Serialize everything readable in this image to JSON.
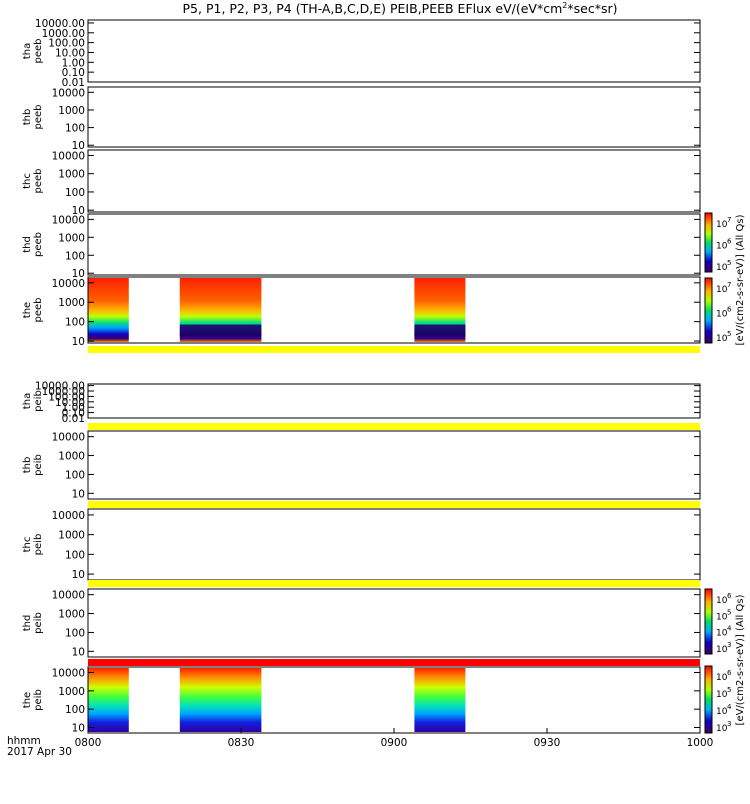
{
  "title_parts": [
    "P5, P1, P2, P3, P4 (TH-A,B,C,D,E) PEIB,PEEB EFlux eV/(eV*cm",
    "2",
    "*sec*sr)"
  ],
  "footer": {
    "time_label": "hhmm",
    "date_label": "2017 Apr 30"
  },
  "colorbar_labels": {
    "top": "[eV/(cm2-s-sr-eV)] (All Qs)",
    "bottom": "[eV/(cm2-s-sr-eV)] (All Qs)"
  },
  "chart_data": {
    "type": "heatmap",
    "x_ticks": [
      "0800",
      "0830",
      "0900",
      "0930",
      "1000"
    ],
    "x_range_minutes": [
      480,
      600
    ],
    "panels": [
      {
        "label1": "tha",
        "label2": "peeb",
        "yticks": [
          "10000.00",
          "1000.00",
          "100.00",
          "10.00",
          "1.00",
          "0.10",
          "0.01"
        ],
        "ylog": [
          -2,
          4.3
        ],
        "data_intervals": [],
        "yellow_bar": false
      },
      {
        "label1": "thb",
        "label2": "peeb",
        "yticks": [
          "10000",
          "1000",
          "100",
          "10"
        ],
        "ylog": [
          0.9,
          4.3
        ],
        "data_intervals": [],
        "yellow_bar": false
      },
      {
        "label1": "thc",
        "label2": "peeb",
        "yticks": [
          "10000",
          "1000",
          "100",
          "10"
        ],
        "ylog": [
          0.9,
          4.3
        ],
        "data_intervals": [],
        "yellow_bar": false
      },
      {
        "label1": "thd",
        "label2": "peeb",
        "yticks": [
          "10000",
          "1000",
          "100",
          "10"
        ],
        "ylog": [
          0.9,
          4.3
        ],
        "data_intervals": [],
        "yellow_bar": false
      },
      {
        "label1": "the",
        "label2": "peeb",
        "yticks": [
          "10000",
          "1000",
          "100",
          "10"
        ],
        "ylog": [
          0.9,
          4.3
        ],
        "data_intervals": [
          [
            480,
            488
          ],
          [
            498,
            514
          ],
          [
            544,
            554
          ]
        ],
        "yellow_bar": true
      },
      {
        "label1": "tha",
        "label2": "peib",
        "yticks": [
          "10000.00",
          "1000.00",
          "100.00",
          "10.00",
          "1.00",
          "0.10",
          "0.01"
        ],
        "ylog": [
          -2,
          4.3
        ],
        "data_intervals": [],
        "yellow_bar": true
      },
      {
        "label1": "thb",
        "label2": "peib",
        "yticks": [
          "10000",
          "1000",
          "100",
          "10"
        ],
        "ylog": [
          0.7,
          4.3
        ],
        "data_intervals": [],
        "yellow_bar": true
      },
      {
        "label1": "thc",
        "label2": "peib",
        "yticks": [
          "10000",
          "1000",
          "100",
          "10"
        ],
        "ylog": [
          0.7,
          4.3
        ],
        "data_intervals": [],
        "yellow_bar": true
      },
      {
        "label1": "thd",
        "label2": "peib",
        "yticks": [
          "10000",
          "1000",
          "100",
          "10"
        ],
        "ylog": [
          0.7,
          4.3
        ],
        "data_intervals": [],
        "red_bar": true
      },
      {
        "label1": "the",
        "label2": "peib",
        "yticks": [
          "10000",
          "1000",
          "100",
          "10"
        ],
        "ylog": [
          0.7,
          4.3
        ],
        "data_intervals": [
          [
            480,
            488
          ],
          [
            498,
            514
          ],
          [
            544,
            554
          ]
        ]
      }
    ],
    "colorbars": [
      {
        "for": "thd peeb",
        "ticks": [
          "10",
          "7",
          "10",
          "6",
          "10",
          "5"
        ]
      },
      {
        "for": "the peeb",
        "ticks": [
          "10",
          "7",
          "10",
          "6",
          "10",
          "5"
        ]
      },
      {
        "for": "thd peib",
        "ticks": [
          "10",
          "6",
          "10",
          "5",
          "10",
          "4",
          "10",
          "3"
        ]
      },
      {
        "for": "the peib",
        "ticks": [
          "10",
          "6",
          "10",
          "5",
          "10",
          "4",
          "10",
          "3"
        ]
      }
    ],
    "colors": {
      "yellow": "#ffff00",
      "red": "#ff0000"
    }
  }
}
